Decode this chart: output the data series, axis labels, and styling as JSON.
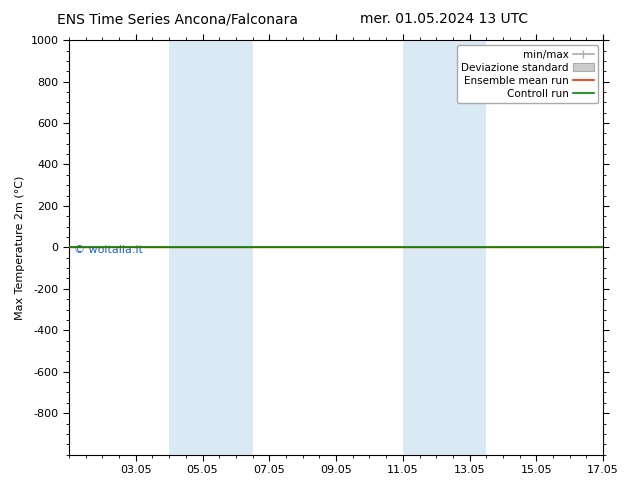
{
  "title_left": "ENS Time Series Ancona/Falconara",
  "title_right": "mer. 01.05.2024 13 UTC",
  "ylabel": "Max Temperature 2m (°C)",
  "ylim_top": -1000,
  "ylim_bottom": 1000,
  "yticks": [
    -800,
    -600,
    -400,
    -200,
    0,
    200,
    400,
    600,
    800,
    1000
  ],
  "xlim_start": 0.0,
  "xlim_end": 16.0,
  "xtick_labels": [
    "03.05",
    "05.05",
    "07.05",
    "09.05",
    "11.05",
    "13.05",
    "15.05",
    "17.05"
  ],
  "xtick_positions": [
    2,
    4,
    6,
    8,
    10,
    12,
    14,
    16
  ],
  "shaded_bands": [
    {
      "x_start": 3.0,
      "x_end": 5.5,
      "color": "#daeaf5"
    },
    {
      "x_start": 10.0,
      "x_end": 12.5,
      "color": "#daeaf5"
    }
  ],
  "green_line_y": 0,
  "red_line_y": 0,
  "watermark": "© woitalia.it",
  "watermark_color": "#1166cc",
  "watermark_fontsize": 8,
  "legend_labels": [
    "min/max",
    "Deviazione standard",
    "Ensemble mean run",
    "Controll run"
  ],
  "background_color": "#ffffff",
  "plot_bg_color": "#ffffff",
  "title_fontsize": 10,
  "ylabel_fontsize": 8,
  "tick_fontsize": 8,
  "legend_fontsize": 7.5
}
